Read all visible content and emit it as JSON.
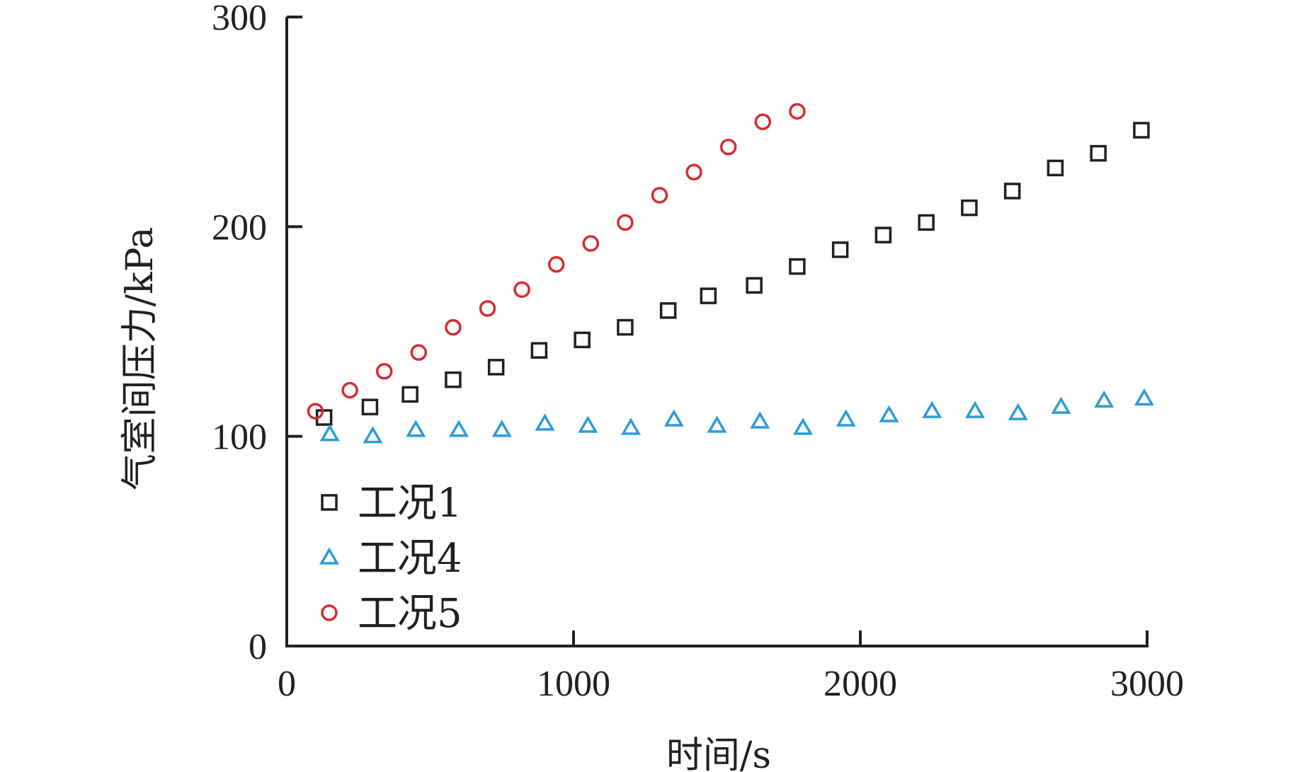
{
  "chart_data": {
    "type": "scatter",
    "title": "",
    "xlabel": "时间/s",
    "ylabel": "气室间压力/kPa",
    "xlim": [
      0,
      3000
    ],
    "ylim": [
      0,
      300
    ],
    "xticks": [
      0,
      1000,
      2000,
      3000
    ],
    "yticks": [
      0,
      100,
      200,
      300
    ],
    "grid": false,
    "legend_position": "bottom-left",
    "series": [
      {
        "name": "工况1",
        "marker": "square",
        "color": "#231f20",
        "x": [
          130,
          290,
          430,
          580,
          730,
          880,
          1030,
          1180,
          1330,
          1470,
          1630,
          1780,
          1930,
          2080,
          2230,
          2380,
          2530,
          2680,
          2830,
          2980
        ],
        "y": [
          109,
          114,
          120,
          127,
          133,
          141,
          146,
          152,
          160,
          167,
          172,
          181,
          189,
          196,
          202,
          209,
          217,
          228,
          235,
          246
        ]
      },
      {
        "name": "工况4",
        "marker": "triangle",
        "color": "#2e9cd6",
        "x": [
          150,
          300,
          450,
          600,
          750,
          900,
          1050,
          1200,
          1350,
          1500,
          1650,
          1800,
          1950,
          2100,
          2250,
          2400,
          2550,
          2700,
          2850,
          2990
        ],
        "y": [
          101,
          100,
          103,
          103,
          103,
          106,
          105,
          104,
          108,
          105,
          107,
          104,
          108,
          110,
          112,
          112,
          111,
          114,
          117,
          118
        ]
      },
      {
        "name": "工况5",
        "marker": "circle",
        "color": "#d92b2f",
        "x": [
          100,
          220,
          340,
          460,
          580,
          700,
          820,
          940,
          1060,
          1180,
          1300,
          1420,
          1540,
          1660,
          1780
        ],
        "y": [
          112,
          122,
          131,
          140,
          152,
          161,
          170,
          182,
          192,
          202,
          215,
          226,
          238,
          250,
          255
        ]
      }
    ]
  }
}
